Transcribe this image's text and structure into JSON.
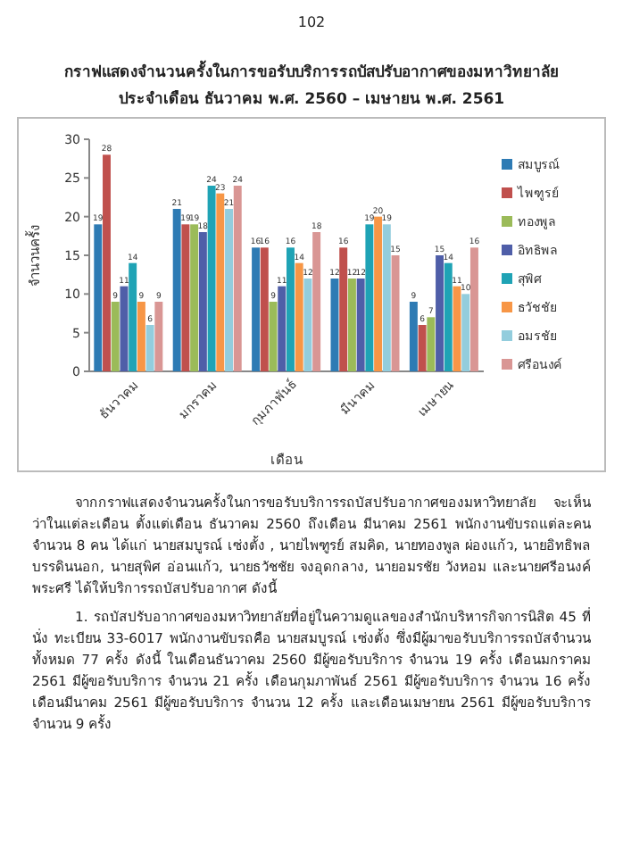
{
  "chart_data": {
    "type": "bar",
    "title": "กราฟแสดงจำนวนครั้งในการขอรับบริการรถบัสปรับอากาศของมหาวิทยาลัย",
    "subtitle": "ประจำเดือน ธันวาคม พ.ศ. 2560 – เมษายน พ.ศ. 2561",
    "xlabel": "เดือน",
    "ylabel": "จำนวนครั้ง",
    "categories": [
      "ธันวาคม",
      "มกราคม",
      "กุมภาพันธ์",
      "มีนาคม",
      "เมษายน"
    ],
    "series": [
      {
        "name": "สมบูรณ์",
        "color": "#2e7bb4",
        "values": [
          19,
          21,
          16,
          12,
          9
        ]
      },
      {
        "name": "ไพฑูรย์",
        "color": "#c0504d",
        "values": [
          28,
          19,
          16,
          16,
          6
        ]
      },
      {
        "name": "ทองพูล",
        "color": "#9bbb59",
        "values": [
          9,
          19,
          9,
          12,
          7
        ]
      },
      {
        "name": "อิทธิพล",
        "color": "#4f5ea8",
        "values": [
          11,
          18,
          11,
          12,
          15
        ]
      },
      {
        "name": "สุพิศ",
        "color": "#1fa3b5",
        "values": [
          14,
          24,
          16,
          19,
          14
        ]
      },
      {
        "name": "ธวัชชัย",
        "color": "#f79646",
        "values": [
          9,
          23,
          14,
          20,
          11
        ]
      },
      {
        "name": "อมรชัย",
        "color": "#93cddd",
        "values": [
          6,
          21,
          12,
          19,
          10
        ]
      },
      {
        "name": "ศรีอนงค์",
        "color": "#d99694",
        "values": [
          9,
          24,
          18,
          15,
          16
        ]
      }
    ],
    "ylim": [
      0,
      30
    ],
    "yticks": [
      0,
      5,
      10,
      15,
      20,
      25,
      30
    ],
    "data_labels": true,
    "legend": "right",
    "grid": false,
    "annotations": [
      "102",
      "จากกราฟแสดงจำนวนครั้งในการขอรับบริการรถบัสปรับอากาศของมหาวิทยาลัย จะเห็นว่าในแต่ละเดือน ตั้งแต่เดือน ธันวาคม 2560 ถึงเดือน มีนาคม 2561 พนักงานขับรถแต่ละคนจำนวน 8 คน ได้แก่ นายสมบูรณ์ เซ่งตั้ง , นายไพฑูรย์ สมคิด, นายทองพูล ผ่องแก้ว, นายอิทธิพล บรรดินนอก, นายสุพิศ อ่อนแก้ว, นายธวัชชัย จงอุดกลาง, นายอมรชัย วังหอม และนายศรีอนงค์ พระศรี ได้ให้บริการรถบัสปรับอากาศ ดังนี้",
      "1. รถบัสปรับอากาศของมหาวิทยาลัยที่อยู่ในความดูแลของสำนักบริหารกิจการนิสิต 45 ที่นั่ง ทะเบียน 33-6017 พนักงานขับรถคือ นายสมบูรณ์ เซ่งตั้ง ซึ่งมีผู้มาขอรับบริการรถบัสจำนวนทั้งหมด 77 ครั้ง ดังนี้ ในเดือนธันวาคม 2560 มีผู้ขอรับบริการ จำนวน 19 ครั้ง เดือนมกราคม 2561 มีผู้ขอรับบริการ จำนวน 21 ครั้ง เดือนกุมภาพันธ์ 2561 มีผู้ขอรับบริการ จำนวน 16 ครั้ง เดือนมีนาคม 2561 มีผู้ขอรับบริการ จำนวน 12 ครั้ง และเดือนเมษายน 2561 มีผู้ขอรับบริการ จำนวน 9 ครั้ง"
    ]
  }
}
